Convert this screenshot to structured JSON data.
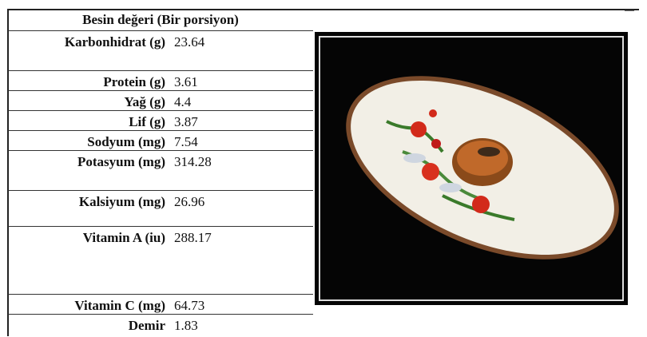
{
  "table": {
    "title": "Besin değeri (Bir porsiyon)",
    "rows": [
      [
        "Karbonhidrat (g)",
        "23.64"
      ],
      [
        "Protein (g)",
        "3.61"
      ],
      [
        "Yağ (g)",
        "4.4"
      ],
      [
        "Lif (g)",
        "3.87"
      ],
      [
        "Sodyum (mg)",
        "7.54"
      ],
      [
        "Potasyum (mg)",
        "314.28"
      ],
      [
        "Kalsiyum (mg)",
        "26.96"
      ],
      [
        "Vitamin A (iu)",
        "288.17"
      ],
      [
        "Vitamin C (mg)",
        "64.73"
      ],
      [
        "Demir",
        "1.83"
      ]
    ]
  }
}
